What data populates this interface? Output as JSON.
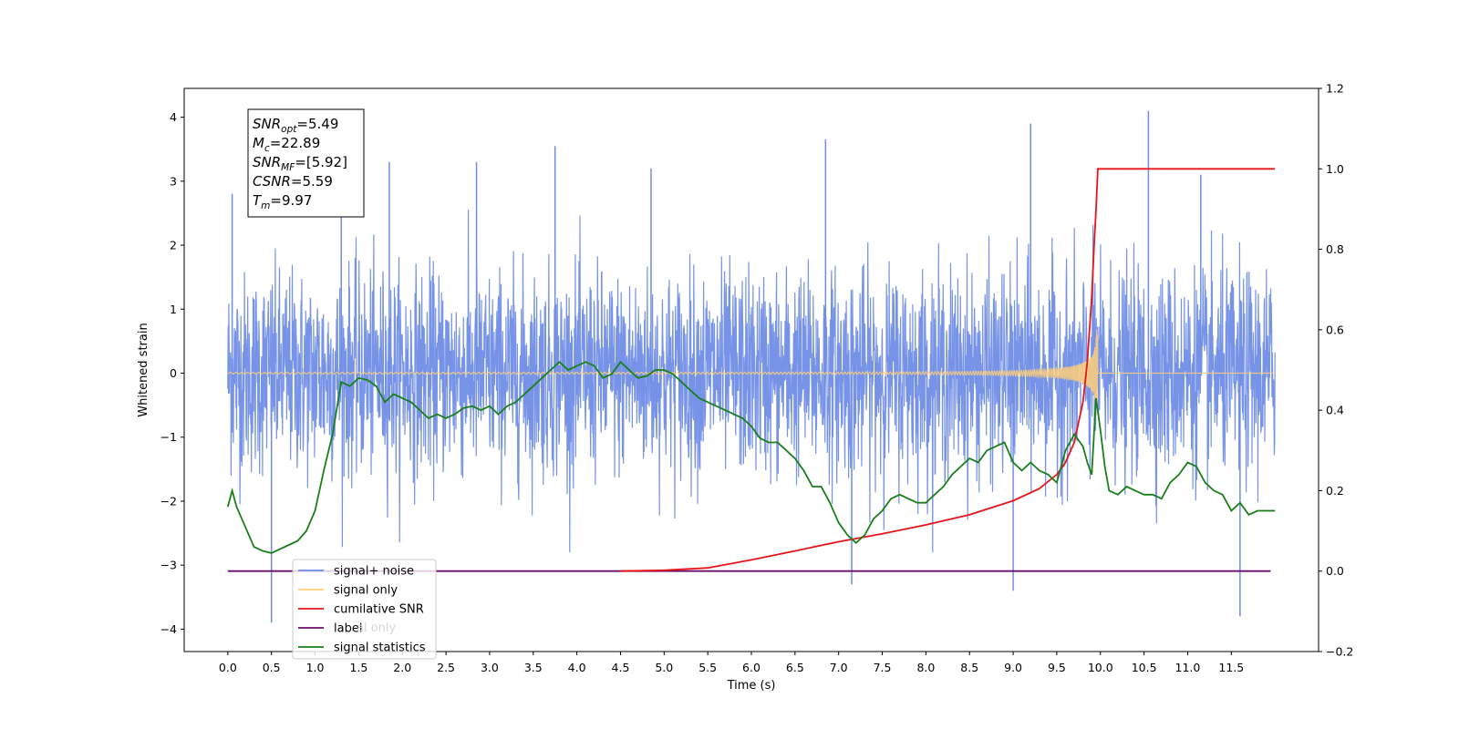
{
  "chart_data": {
    "type": "line",
    "xlabel": "Time (s)",
    "ylabel": "Whitened strain",
    "xlim": [
      -0.5,
      12.5
    ],
    "ylim": [
      -4.35,
      4.45
    ],
    "y2lim": [
      -0.2,
      1.2
    ],
    "x_ticks": [
      0.0,
      0.5,
      1.0,
      1.5,
      2.0,
      2.5,
      3.0,
      3.5,
      4.0,
      4.5,
      5.0,
      5.5,
      6.0,
      6.5,
      7.0,
      7.5,
      8.0,
      8.5,
      9.0,
      9.5,
      10.0,
      10.5,
      11.0,
      11.5
    ],
    "x_tick_labels": [
      "0.0",
      "0.5",
      "1.0",
      "1.5",
      "2.0",
      "2.5",
      "3.0",
      "3.5",
      "4.0",
      "4.5",
      "5.0",
      "5.5",
      "6.0",
      "6.5",
      "7.0",
      "7.5",
      "8.0",
      "8.5",
      "9.0",
      "9.5",
      "10.0",
      "10.5",
      "11.0",
      "11.5"
    ],
    "y_ticks": [
      4,
      3,
      2,
      1,
      0,
      -1,
      -2,
      -3,
      -4
    ],
    "y_tick_labels": [
      "4",
      "3",
      "2",
      "1",
      "0",
      "−1",
      "−2",
      "−3",
      "−4"
    ],
    "y2_ticks": [
      1.2,
      1.0,
      0.8,
      0.6,
      0.4,
      0.2,
      0.0,
      -0.2
    ],
    "y2_tick_labels": [
      "1.2",
      "1.0",
      "0.8",
      "0.6",
      "0.4",
      "0.2",
      "0.0",
      "−0.2"
    ],
    "annotation": [
      {
        "base": "SNR",
        "sub": "opt",
        "value": "=5.49"
      },
      {
        "base": "M",
        "sub": "c",
        "value": "=22.89"
      },
      {
        "base": "SNR",
        "sub": "MF",
        "value": "=[5.92]"
      },
      {
        "base": "CSNR",
        "sub": "",
        "value": "=5.59"
      },
      {
        "base": "T",
        "sub": "m",
        "value": "=9.97"
      }
    ],
    "legend": {
      "placement": "lower-left",
      "entries": [
        {
          "label": "signal+ noise",
          "color": "#6f8de6"
        },
        {
          "label": "signal only",
          "color": "#ffcf7a"
        },
        {
          "label": "cumilative SNR",
          "color": "#e8141a"
        },
        {
          "label": "label",
          "color": "#6a0d6a"
        },
        {
          "label": "signal statistics",
          "color": "#1a7f1a"
        }
      ],
      "ghost_labels": [
        "al only",
        "statistics"
      ]
    },
    "series": [
      {
        "name": "signal+ noise",
        "axis": "left",
        "color": "#6f8de6",
        "x_range": [
          0.0,
          12.0
        ],
        "envelope": [
          -2.4,
          2.3
        ],
        "spikes": [
          [
            0.5,
            -3.9
          ],
          [
            0.05,
            2.8
          ],
          [
            1.3,
            3.0
          ],
          [
            1.85,
            3.3
          ],
          [
            2.85,
            3.3
          ],
          [
            3.75,
            3.55
          ],
          [
            4.85,
            3.2
          ],
          [
            6.85,
            3.65
          ],
          [
            9.2,
            3.9
          ],
          [
            10.55,
            4.1
          ],
          [
            11.6,
            -3.8
          ],
          [
            7.15,
            -3.3
          ],
          [
            9.0,
            -3.4
          ],
          [
            11.15,
            3.1
          ]
        ]
      },
      {
        "name": "signal only",
        "axis": "left",
        "color": "#ffcf7a",
        "x_range": [
          0.0,
          12.0
        ],
        "merger_time": 9.97
      },
      {
        "name": "cumilative SNR",
        "axis": "right",
        "color": "#e8141a",
        "points": [
          [
            4.5,
            0.0
          ],
          [
            5.0,
            0.002
          ],
          [
            5.5,
            0.008
          ],
          [
            6.0,
            0.028
          ],
          [
            6.5,
            0.05
          ],
          [
            7.0,
            0.073
          ],
          [
            7.5,
            0.093
          ],
          [
            8.0,
            0.115
          ],
          [
            8.5,
            0.14
          ],
          [
            9.0,
            0.175
          ],
          [
            9.3,
            0.205
          ],
          [
            9.5,
            0.24
          ],
          [
            9.6,
            0.27
          ],
          [
            9.7,
            0.32
          ],
          [
            9.8,
            0.42
          ],
          [
            9.85,
            0.52
          ],
          [
            9.9,
            0.68
          ],
          [
            9.93,
            0.82
          ],
          [
            9.95,
            0.9
          ],
          [
            9.97,
            1.0
          ],
          [
            12.0,
            1.0
          ]
        ]
      },
      {
        "name": "label",
        "axis": "right",
        "color": "#6a0d6a",
        "points": [
          [
            0.0,
            0.0
          ],
          [
            11.95,
            0.0
          ]
        ]
      },
      {
        "name": "signal statistics",
        "axis": "right",
        "color": "#1a7f1a",
        "points": [
          [
            0.0,
            0.16
          ],
          [
            0.05,
            0.2
          ],
          [
            0.1,
            0.16
          ],
          [
            0.2,
            0.11
          ],
          [
            0.3,
            0.06
          ],
          [
            0.4,
            0.05
          ],
          [
            0.5,
            0.045
          ],
          [
            0.6,
            0.055
          ],
          [
            0.7,
            0.065
          ],
          [
            0.8,
            0.075
          ],
          [
            0.9,
            0.1
          ],
          [
            1.0,
            0.15
          ],
          [
            1.1,
            0.25
          ],
          [
            1.2,
            0.34
          ],
          [
            1.3,
            0.47
          ],
          [
            1.4,
            0.46
          ],
          [
            1.5,
            0.48
          ],
          [
            1.6,
            0.475
          ],
          [
            1.7,
            0.46
          ],
          [
            1.8,
            0.42
          ],
          [
            1.9,
            0.44
          ],
          [
            2.0,
            0.43
          ],
          [
            2.1,
            0.42
          ],
          [
            2.2,
            0.4
          ],
          [
            2.3,
            0.38
          ],
          [
            2.4,
            0.39
          ],
          [
            2.5,
            0.38
          ],
          [
            2.6,
            0.39
          ],
          [
            2.7,
            0.405
          ],
          [
            2.8,
            0.41
          ],
          [
            2.9,
            0.4
          ],
          [
            3.0,
            0.41
          ],
          [
            3.1,
            0.39
          ],
          [
            3.2,
            0.41
          ],
          [
            3.3,
            0.42
          ],
          [
            3.4,
            0.44
          ],
          [
            3.5,
            0.46
          ],
          [
            3.6,
            0.48
          ],
          [
            3.7,
            0.5
          ],
          [
            3.8,
            0.52
          ],
          [
            3.9,
            0.5
          ],
          [
            4.0,
            0.51
          ],
          [
            4.1,
            0.52
          ],
          [
            4.2,
            0.51
          ],
          [
            4.3,
            0.48
          ],
          [
            4.4,
            0.49
          ],
          [
            4.5,
            0.52
          ],
          [
            4.6,
            0.5
          ],
          [
            4.7,
            0.48
          ],
          [
            4.8,
            0.485
          ],
          [
            4.9,
            0.5
          ],
          [
            5.0,
            0.5
          ],
          [
            5.1,
            0.49
          ],
          [
            5.2,
            0.47
          ],
          [
            5.3,
            0.45
          ],
          [
            5.4,
            0.43
          ],
          [
            5.5,
            0.42
          ],
          [
            5.6,
            0.41
          ],
          [
            5.7,
            0.4
          ],
          [
            5.8,
            0.39
          ],
          [
            5.9,
            0.38
          ],
          [
            6.0,
            0.36
          ],
          [
            6.1,
            0.33
          ],
          [
            6.2,
            0.32
          ],
          [
            6.3,
            0.32
          ],
          [
            6.4,
            0.3
          ],
          [
            6.5,
            0.28
          ],
          [
            6.6,
            0.25
          ],
          [
            6.7,
            0.21
          ],
          [
            6.8,
            0.21
          ],
          [
            6.9,
            0.17
          ],
          [
            7.0,
            0.12
          ],
          [
            7.1,
            0.09
          ],
          [
            7.2,
            0.07
          ],
          [
            7.3,
            0.09
          ],
          [
            7.4,
            0.13
          ],
          [
            7.5,
            0.15
          ],
          [
            7.6,
            0.18
          ],
          [
            7.7,
            0.19
          ],
          [
            7.8,
            0.18
          ],
          [
            7.9,
            0.17
          ],
          [
            8.0,
            0.17
          ],
          [
            8.1,
            0.19
          ],
          [
            8.2,
            0.21
          ],
          [
            8.3,
            0.24
          ],
          [
            8.4,
            0.26
          ],
          [
            8.5,
            0.28
          ],
          [
            8.6,
            0.27
          ],
          [
            8.7,
            0.3
          ],
          [
            8.8,
            0.31
          ],
          [
            8.9,
            0.32
          ],
          [
            9.0,
            0.27
          ],
          [
            9.1,
            0.25
          ],
          [
            9.2,
            0.27
          ],
          [
            9.3,
            0.25
          ],
          [
            9.4,
            0.24
          ],
          [
            9.5,
            0.22
          ],
          [
            9.6,
            0.3
          ],
          [
            9.7,
            0.34
          ],
          [
            9.8,
            0.31
          ],
          [
            9.85,
            0.27
          ],
          [
            9.9,
            0.24
          ],
          [
            9.95,
            0.43
          ],
          [
            10.0,
            0.35
          ],
          [
            10.05,
            0.26
          ],
          [
            10.1,
            0.2
          ],
          [
            10.2,
            0.19
          ],
          [
            10.3,
            0.21
          ],
          [
            10.4,
            0.2
          ],
          [
            10.5,
            0.19
          ],
          [
            10.6,
            0.19
          ],
          [
            10.7,
            0.18
          ],
          [
            10.8,
            0.22
          ],
          [
            10.9,
            0.24
          ],
          [
            11.0,
            0.27
          ],
          [
            11.1,
            0.26
          ],
          [
            11.2,
            0.22
          ],
          [
            11.3,
            0.2
          ],
          [
            11.4,
            0.19
          ],
          [
            11.5,
            0.15
          ],
          [
            11.6,
            0.17
          ],
          [
            11.7,
            0.14
          ],
          [
            11.8,
            0.15
          ],
          [
            11.9,
            0.15
          ],
          [
            12.0,
            0.15
          ]
        ]
      }
    ]
  }
}
